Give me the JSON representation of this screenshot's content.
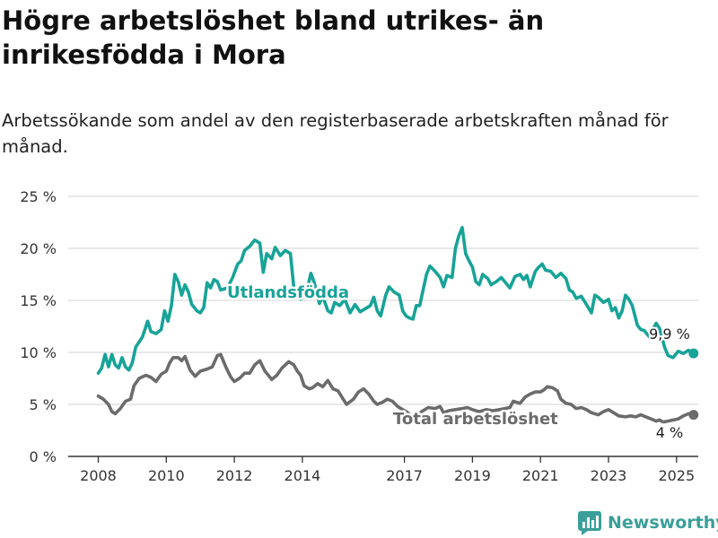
{
  "title": "Högre arbetslöshet bland utrikes- än inrikesfödda i Mora",
  "subtitle": "Arbetssökande som andel av den registerbaserade arbetskraften månad för månad.",
  "brand": "Newsworthy",
  "colors": {
    "foreign": "#17a398",
    "total": "#6b6b6b",
    "grid": "#dcdcdc",
    "axis": "#333333",
    "brand": "#3a9f99"
  },
  "chart_data": {
    "type": "line",
    "ylim": [
      0,
      25
    ],
    "xlim": [
      2007.55,
      2025.8
    ],
    "y_ticks": [
      0,
      5,
      10,
      15,
      20,
      25
    ],
    "y_tick_labels": [
      "0 %",
      "5 %",
      "10 %",
      "15 %",
      "20 %",
      "25 %"
    ],
    "x_ticks": [
      2008,
      2010,
      2012,
      2014,
      2017,
      2019,
      2021,
      2023,
      2025
    ],
    "x_tick_labels": [
      "2008",
      "2010",
      "2012",
      "2014",
      "2017",
      "2019",
      "2021",
      "2023",
      "2025"
    ],
    "series": [
      {
        "name": "Utlandsfödda",
        "end_label": "9,9 %",
        "points": [
          [
            2008.0,
            8
          ],
          [
            2008.1,
            8.5
          ],
          [
            2008.2,
            9.8
          ],
          [
            2008.3,
            8.6
          ],
          [
            2008.4,
            9.8
          ],
          [
            2008.5,
            8.8
          ],
          [
            2008.6,
            8.5
          ],
          [
            2008.7,
            9.5
          ],
          [
            2008.8,
            8.6
          ],
          [
            2008.9,
            8.3
          ],
          [
            2009.0,
            9
          ],
          [
            2009.1,
            10.5
          ],
          [
            2009.3,
            11.5
          ],
          [
            2009.45,
            13
          ],
          [
            2009.55,
            12
          ],
          [
            2009.7,
            11.8
          ],
          [
            2009.85,
            12.2
          ],
          [
            2009.95,
            14
          ],
          [
            2010.05,
            13
          ],
          [
            2010.15,
            14.5
          ],
          [
            2010.25,
            17.5
          ],
          [
            2010.35,
            16.8
          ],
          [
            2010.45,
            15.5
          ],
          [
            2010.55,
            16.5
          ],
          [
            2010.65,
            15.8
          ],
          [
            2010.75,
            14.6
          ],
          [
            2010.9,
            14
          ],
          [
            2011.0,
            13.8
          ],
          [
            2011.1,
            14.3
          ],
          [
            2011.2,
            16.7
          ],
          [
            2011.3,
            16.2
          ],
          [
            2011.4,
            17
          ],
          [
            2011.5,
            16.8
          ],
          [
            2011.6,
            16
          ],
          [
            2011.8,
            16.2
          ],
          [
            2011.95,
            17.2
          ],
          [
            2012.1,
            18.5
          ],
          [
            2012.2,
            18.8
          ],
          [
            2012.3,
            19.8
          ],
          [
            2012.45,
            20.2
          ],
          [
            2012.6,
            20.8
          ],
          [
            2012.75,
            20.5
          ],
          [
            2012.85,
            17.7
          ],
          [
            2012.95,
            19.5
          ],
          [
            2013.1,
            19
          ],
          [
            2013.2,
            20.1
          ],
          [
            2013.35,
            19.3
          ],
          [
            2013.5,
            19.8
          ],
          [
            2013.65,
            19.5
          ],
          [
            2013.75,
            16.2
          ],
          [
            2013.85,
            15.6
          ],
          [
            2013.95,
            15.1
          ],
          [
            2014.1,
            15.5
          ],
          [
            2014.25,
            17.6
          ],
          [
            2014.35,
            16.7
          ],
          [
            2014.5,
            14.7
          ],
          [
            2014.6,
            15.4
          ],
          [
            2014.75,
            14
          ],
          [
            2014.85,
            13.8
          ],
          [
            2014.95,
            14.8
          ],
          [
            2015.1,
            14.5
          ],
          [
            2015.25,
            15.1
          ],
          [
            2015.4,
            13.8
          ],
          [
            2015.55,
            14.6
          ],
          [
            2015.7,
            13.9
          ],
          [
            2015.85,
            14.2
          ],
          [
            2016.0,
            14.5
          ],
          [
            2016.1,
            15.3
          ],
          [
            2016.2,
            14
          ],
          [
            2016.3,
            13.5
          ],
          [
            2016.45,
            15.5
          ],
          [
            2016.55,
            16.3
          ],
          [
            2016.7,
            15.8
          ],
          [
            2016.85,
            15.5
          ],
          [
            2016.95,
            14
          ],
          [
            2017.05,
            13.5
          ],
          [
            2017.15,
            13.3
          ],
          [
            2017.25,
            13.2
          ],
          [
            2017.35,
            14.5
          ],
          [
            2017.45,
            14.5
          ],
          [
            2017.55,
            16
          ],
          [
            2017.65,
            17.5
          ],
          [
            2017.75,
            18.3
          ],
          [
            2017.9,
            17.8
          ],
          [
            2018.05,
            17.2
          ],
          [
            2018.15,
            16.3
          ],
          [
            2018.25,
            17.4
          ],
          [
            2018.4,
            17.2
          ],
          [
            2018.5,
            20
          ],
          [
            2018.6,
            21.2
          ],
          [
            2018.7,
            22
          ],
          [
            2018.8,
            19.5
          ],
          [
            2018.9,
            18.8
          ],
          [
            2019.0,
            18.2
          ],
          [
            2019.1,
            16.8
          ],
          [
            2019.2,
            16.5
          ],
          [
            2019.3,
            17.5
          ],
          [
            2019.45,
            17.1
          ],
          [
            2019.55,
            16.5
          ],
          [
            2019.7,
            16.8
          ],
          [
            2019.85,
            17.2
          ],
          [
            2019.95,
            16.8
          ],
          [
            2020.1,
            16.2
          ],
          [
            2020.25,
            17.3
          ],
          [
            2020.4,
            17.5
          ],
          [
            2020.5,
            17
          ],
          [
            2020.6,
            17.4
          ],
          [
            2020.7,
            16.3
          ],
          [
            2020.85,
            17.8
          ],
          [
            2020.95,
            18.2
          ],
          [
            2021.05,
            18.5
          ],
          [
            2021.15,
            17.9
          ],
          [
            2021.3,
            17.8
          ],
          [
            2021.45,
            17.2
          ],
          [
            2021.6,
            17.6
          ],
          [
            2021.75,
            17.1
          ],
          [
            2021.85,
            16
          ],
          [
            2021.95,
            15.8
          ],
          [
            2022.05,
            15.2
          ],
          [
            2022.2,
            15.4
          ],
          [
            2022.35,
            14.6
          ],
          [
            2022.5,
            13.8
          ],
          [
            2022.6,
            15.5
          ],
          [
            2022.7,
            15.3
          ],
          [
            2022.85,
            14.8
          ],
          [
            2023.0,
            15.1
          ],
          [
            2023.1,
            14
          ],
          [
            2023.2,
            14.3
          ],
          [
            2023.3,
            13.3
          ],
          [
            2023.4,
            14
          ],
          [
            2023.5,
            15.5
          ],
          [
            2023.6,
            15.1
          ],
          [
            2023.7,
            14.5
          ],
          [
            2023.85,
            12.6
          ],
          [
            2023.95,
            12.2
          ],
          [
            2024.05,
            12.1
          ],
          [
            2024.2,
            11.5
          ],
          [
            2024.3,
            12.2
          ],
          [
            2024.4,
            12.8
          ],
          [
            2024.5,
            12.3
          ],
          [
            2024.65,
            10.5
          ],
          [
            2024.75,
            9.7
          ],
          [
            2024.9,
            9.5
          ],
          [
            2025.05,
            10.1
          ],
          [
            2025.2,
            9.9
          ],
          [
            2025.35,
            10.2
          ],
          [
            2025.5,
            9.9
          ]
        ]
      },
      {
        "name": "Total arbetslöshet",
        "end_label": "4 %",
        "points": [
          [
            2008.0,
            5.8
          ],
          [
            2008.15,
            5.5
          ],
          [
            2008.3,
            5
          ],
          [
            2008.4,
            4.3
          ],
          [
            2008.5,
            4.1
          ],
          [
            2008.65,
            4.6
          ],
          [
            2008.8,
            5.3
          ],
          [
            2008.95,
            5.5
          ],
          [
            2009.05,
            6.8
          ],
          [
            2009.2,
            7.5
          ],
          [
            2009.4,
            7.8
          ],
          [
            2009.55,
            7.6
          ],
          [
            2009.7,
            7.2
          ],
          [
            2009.85,
            7.9
          ],
          [
            2010.0,
            8.2
          ],
          [
            2010.1,
            9
          ],
          [
            2010.2,
            9.5
          ],
          [
            2010.35,
            9.5
          ],
          [
            2010.45,
            9.2
          ],
          [
            2010.55,
            9.6
          ],
          [
            2010.7,
            8.3
          ],
          [
            2010.85,
            7.7
          ],
          [
            2011.0,
            8.2
          ],
          [
            2011.2,
            8.4
          ],
          [
            2011.35,
            8.6
          ],
          [
            2011.5,
            9.7
          ],
          [
            2011.6,
            9.8
          ],
          [
            2011.75,
            8.6
          ],
          [
            2011.9,
            7.6
          ],
          [
            2012.0,
            7.2
          ],
          [
            2012.15,
            7.5
          ],
          [
            2012.3,
            8
          ],
          [
            2012.45,
            8
          ],
          [
            2012.6,
            8.8
          ],
          [
            2012.75,
            9.2
          ],
          [
            2012.9,
            8.2
          ],
          [
            2013.0,
            7.8
          ],
          [
            2013.1,
            7.4
          ],
          [
            2013.25,
            7.8
          ],
          [
            2013.4,
            8.5
          ],
          [
            2013.6,
            9.1
          ],
          [
            2013.75,
            8.8
          ],
          [
            2013.85,
            8.2
          ],
          [
            2013.95,
            7.8
          ],
          [
            2014.05,
            6.8
          ],
          [
            2014.2,
            6.5
          ],
          [
            2014.3,
            6.6
          ],
          [
            2014.45,
            7
          ],
          [
            2014.6,
            6.7
          ],
          [
            2014.75,
            7.3
          ],
          [
            2014.9,
            6.5
          ],
          [
            2015.05,
            6.3
          ],
          [
            2015.2,
            5.5
          ],
          [
            2015.3,
            5
          ],
          [
            2015.5,
            5.5
          ],
          [
            2015.65,
            6.2
          ],
          [
            2015.8,
            6.5
          ],
          [
            2015.95,
            6
          ],
          [
            2016.1,
            5.3
          ],
          [
            2016.2,
            5
          ],
          [
            2016.35,
            5.2
          ],
          [
            2016.5,
            5.5
          ],
          [
            2016.65,
            5.3
          ],
          [
            2016.8,
            4.8
          ],
          [
            2016.95,
            4.5
          ],
          [
            2017.1,
            4.2
          ],
          [
            2017.2,
            3.9
          ],
          [
            2017.35,
            3.8
          ],
          [
            2017.5,
            4.3
          ],
          [
            2017.7,
            4.7
          ],
          [
            2017.9,
            4.6
          ],
          [
            2018.05,
            4.8
          ],
          [
            2018.15,
            4.2
          ],
          [
            2018.3,
            4.4
          ],
          [
            2018.5,
            4.5
          ],
          [
            2018.7,
            4.6
          ],
          [
            2018.85,
            4.7
          ],
          [
            2019.0,
            4.5
          ],
          [
            2019.2,
            4.3
          ],
          [
            2019.4,
            4.5
          ],
          [
            2019.6,
            4.4
          ],
          [
            2019.8,
            4.5
          ],
          [
            2019.95,
            4.6
          ],
          [
            2020.1,
            4.7
          ],
          [
            2020.2,
            5.3
          ],
          [
            2020.4,
            5.1
          ],
          [
            2020.55,
            5.7
          ],
          [
            2020.7,
            6
          ],
          [
            2020.85,
            6.2
          ],
          [
            2021.0,
            6.2
          ],
          [
            2021.1,
            6.4
          ],
          [
            2021.2,
            6.7
          ],
          [
            2021.35,
            6.6
          ],
          [
            2021.5,
            6.3
          ],
          [
            2021.6,
            5.5
          ],
          [
            2021.75,
            5.1
          ],
          [
            2021.9,
            5
          ],
          [
            2022.05,
            4.6
          ],
          [
            2022.2,
            4.7
          ],
          [
            2022.35,
            4.5
          ],
          [
            2022.5,
            4.2
          ],
          [
            2022.7,
            4
          ],
          [
            2022.85,
            4.3
          ],
          [
            2023.0,
            4.5
          ],
          [
            2023.15,
            4.2
          ],
          [
            2023.3,
            3.9
          ],
          [
            2023.5,
            3.8
          ],
          [
            2023.65,
            3.9
          ],
          [
            2023.8,
            3.8
          ],
          [
            2023.95,
            4
          ],
          [
            2024.1,
            3.8
          ],
          [
            2024.25,
            3.6
          ],
          [
            2024.4,
            3.4
          ],
          [
            2024.5,
            3.5
          ],
          [
            2024.6,
            3.3
          ],
          [
            2024.75,
            3.4
          ],
          [
            2024.9,
            3.5
          ],
          [
            2025.05,
            3.6
          ],
          [
            2025.2,
            3.9
          ],
          [
            2025.35,
            4.1
          ],
          [
            2025.5,
            4
          ]
        ]
      }
    ]
  }
}
